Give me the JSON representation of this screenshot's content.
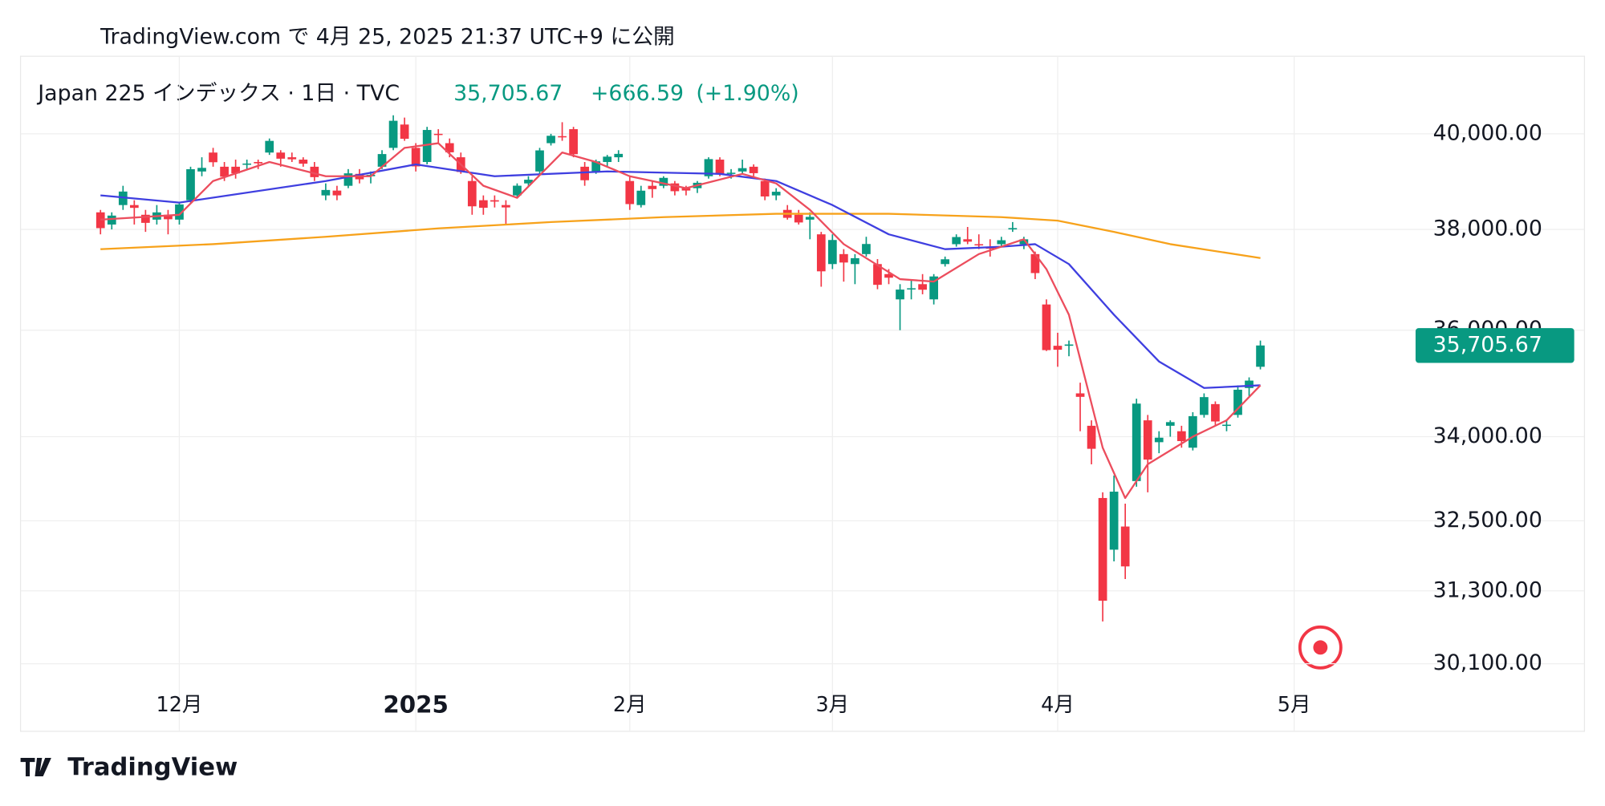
{
  "chart_data": {
    "type": "candlestick",
    "published": "TradingView.com で 4月 25, 2025 21:37 UTC+9 に公開",
    "title": "Japan 225 インデックス · 1日 · TVC",
    "last_price": {
      "value": 35705.67,
      "label": "35,705.67"
    },
    "change": {
      "value": 666.59,
      "label": "+666.59"
    },
    "change_pct": {
      "value": 1.9,
      "label": "(+1.90%)"
    },
    "brand": "TradingView",
    "log_scale": true,
    "grid": true,
    "up_color": "#089981",
    "down_color": "#f23645",
    "ylim": [
      30000,
      41700
    ],
    "yticks": [
      {
        "value": 40000,
        "label": "40,000.00"
      },
      {
        "value": 38000,
        "label": "38,000.00"
      },
      {
        "value": 36000,
        "label": "36,000.00"
      },
      {
        "value": 34000,
        "label": "34,000.00"
      },
      {
        "value": 32500,
        "label": "32,500.00"
      },
      {
        "value": 31300,
        "label": "31,300.00"
      },
      {
        "value": 30100,
        "label": "30,100.00"
      }
    ],
    "xlim": [
      -7.1,
      115.6
    ],
    "xticks": [
      {
        "value": 7,
        "label": "12月"
      },
      {
        "value": 28,
        "label": "2025"
      },
      {
        "value": 47,
        "label": "2月"
      },
      {
        "value": 65,
        "label": "3月"
      },
      {
        "value": 85,
        "label": "4月"
      },
      {
        "value": 106,
        "label": "5月"
      }
    ],
    "open": [
      38350,
      38100,
      38500,
      38500,
      38300,
      38200,
      38300,
      38200,
      38600,
      39200,
      39600,
      39300,
      39300,
      39350,
      39400,
      39600,
      39600,
      39500,
      39450,
      39300,
      38700,
      38800,
      38900,
      39150,
      39100,
      39300,
      39700,
      40200,
      39700,
      39400,
      40000,
      39800,
      39500,
      39000,
      38600,
      38600,
      38500,
      38700,
      38950,
      39200,
      39800,
      39950,
      40100,
      39300,
      39200,
      39400,
      39500,
      39000,
      38500,
      38900,
      38900,
      38950,
      38850,
      38850,
      39100,
      39450,
      39150,
      39200,
      39300,
      39000,
      38700,
      38400,
      38300,
      38200,
      37900,
      37300,
      37500,
      37300,
      37500,
      37300,
      37100,
      36600,
      36800,
      36900,
      36600,
      37300,
      37700,
      37800,
      37700,
      37650,
      37700,
      38000,
      37700,
      37500,
      36500,
      35700,
      35700,
      34800,
      34200,
      32900,
      32000,
      32400,
      33200,
      34300,
      33900,
      34200,
      34100,
      33800,
      34400,
      34600,
      34200,
      34400,
      34900,
      35300
    ],
    "high": [
      38400,
      38350,
      38900,
      38600,
      38400,
      38500,
      38400,
      38550,
      39300,
      39500,
      39700,
      39400,
      39450,
      39450,
      39450,
      39900,
      39650,
      39600,
      39500,
      39400,
      38950,
      38900,
      39250,
      39250,
      39200,
      39650,
      40400,
      40350,
      39800,
      40150,
      40100,
      39900,
      39600,
      39100,
      38700,
      38700,
      38600,
      38950,
      39100,
      39700,
      40000,
      40250,
      40150,
      39400,
      39450,
      39550,
      39650,
      39100,
      38900,
      39000,
      39100,
      39000,
      38900,
      39000,
      39500,
      39500,
      39250,
      39450,
      39350,
      39050,
      38850,
      38500,
      38400,
      38350,
      37950,
      37900,
      37600,
      37500,
      37850,
      37400,
      37200,
      36900,
      37000,
      37100,
      37100,
      37450,
      37900,
      38050,
      37900,
      37800,
      37850,
      38150,
      37850,
      37550,
      36600,
      35950,
      35800,
      35000,
      34300,
      33000,
      33300,
      32800,
      34700,
      34400,
      34100,
      34300,
      34200,
      34450,
      34800,
      34650,
      34300,
      34950,
      35100,
      35800
    ],
    "low": [
      37900,
      38000,
      38400,
      38100,
      37950,
      38100,
      37900,
      38100,
      38550,
      39100,
      39300,
      39000,
      39050,
      39250,
      39250,
      39550,
      39300,
      39400,
      39300,
      39000,
      38600,
      38600,
      38850,
      38950,
      38950,
      39250,
      39650,
      39850,
      39200,
      39350,
      39800,
      39500,
      39150,
      38300,
      38300,
      38450,
      38100,
      38650,
      38900,
      39150,
      39750,
      39850,
      39500,
      38900,
      39150,
      39300,
      39400,
      38400,
      38450,
      38650,
      38850,
      38700,
      38700,
      38750,
      39050,
      39100,
      39050,
      39150,
      39100,
      38600,
      38600,
      38200,
      38100,
      37800,
      36850,
      37200,
      36950,
      36900,
      37450,
      36800,
      36900,
      36000,
      36600,
      36700,
      36500,
      37250,
      37650,
      37700,
      37600,
      37450,
      37650,
      37950,
      37600,
      37000,
      35600,
      35300,
      35500,
      34100,
      33500,
      30792,
      31800,
      31500,
      33100,
      33000,
      33700,
      34000,
      33800,
      33750,
      34350,
      34200,
      34100,
      34350,
      34750,
      35250
    ],
    "close": [
      38026,
      38283,
      38780,
      38442,
      38134,
      38349,
      38208,
      38513,
      39248,
      39276,
      39395,
      39091,
      39160,
      39367,
      39372,
      39849,
      39470,
      39457,
      39364,
      39081,
      38813,
      38701,
      39161,
      39036,
      39130,
      39568,
      40281,
      39894,
      39307,
      40083,
      39981,
      39605,
      39190,
      38474,
      38444,
      38572,
      38451,
      38902,
      39027,
      39646,
      39958,
      39931,
      39565,
      39016,
      39414,
      39513,
      39572,
      38520,
      38798,
      38831,
      39066,
      38787,
      38801,
      38963,
      39461,
      39149,
      39174,
      39270,
      39164,
      38678,
      38776,
      38237,
      38142,
      38256,
      37155,
      37785,
      37331,
      37418,
      37704,
      36887,
      37028,
      36793,
      36819,
      36790,
      37053,
      37396,
      37845,
      37751,
      37677,
      37608,
      37780,
      38027,
      37799,
      37120,
      35617,
      35624,
      35725,
      34735,
      33780,
      31136,
      33012,
      31714,
      34609,
      33585,
      33982,
      34267,
      33920,
      34377,
      34730,
      34279,
      34220,
      34868,
      35039,
      35705.67
    ],
    "lines": [
      {
        "color": "#f7a21b",
        "x": [
          0,
          10,
          20,
          30,
          40,
          50,
          60,
          70,
          80,
          85,
          90,
          95,
          103
        ],
        "values": [
          37600,
          37700,
          37850,
          38020,
          38150,
          38250,
          38320,
          38320,
          38250,
          38180,
          37950,
          37700,
          37420
        ]
      },
      {
        "color": "#3f3fe0",
        "x": [
          0,
          7,
          20,
          28,
          35,
          45,
          55,
          60,
          65,
          70,
          75,
          80,
          83,
          86,
          90,
          94,
          98,
          103
        ],
        "values": [
          38700,
          38550,
          39000,
          39350,
          39100,
          39200,
          39150,
          39000,
          38500,
          37900,
          37600,
          37650,
          37700,
          37300,
          36300,
          35400,
          34900,
          34950
        ]
      },
      {
        "color": "#ec4d5d",
        "x": [
          0,
          7,
          10,
          15,
          20,
          24,
          27,
          30,
          34,
          37,
          41,
          44,
          47,
          52,
          57,
          60,
          63,
          66,
          71,
          74,
          78,
          82,
          84,
          86,
          89,
          91,
          93,
          97,
          100,
          103
        ],
        "values": [
          38200,
          38300,
          39000,
          39400,
          39100,
          39100,
          39700,
          39800,
          38900,
          38650,
          39600,
          39400,
          39100,
          38850,
          39150,
          38950,
          38400,
          37700,
          37000,
          36950,
          37500,
          37800,
          37200,
          36300,
          33800,
          32900,
          33500,
          34000,
          34300,
          34950
        ]
      }
    ]
  }
}
